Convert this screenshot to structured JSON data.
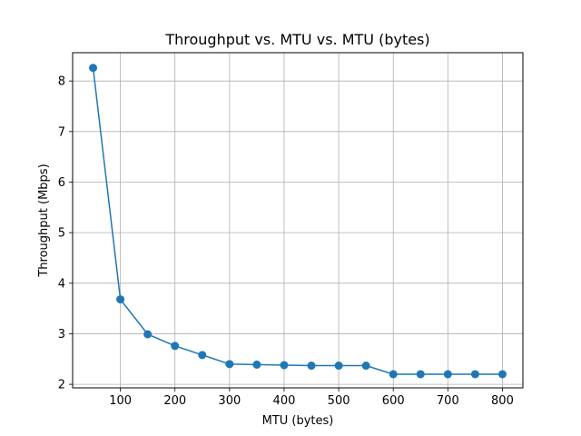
{
  "chart_data": {
    "type": "line",
    "title": "Throughput vs. MTU vs. MTU (bytes)",
    "xlabel": "MTU (bytes)",
    "ylabel": "Throughput (Mbps)",
    "xlim": [
      12.5,
      837.5
    ],
    "ylim": [
      1.93,
      8.56
    ],
    "xticks": [
      100,
      200,
      300,
      400,
      500,
      600,
      700,
      800
    ],
    "yticks": [
      2,
      3,
      4,
      5,
      6,
      7,
      8
    ],
    "grid": true,
    "color": "#1f77b4",
    "marker": "circle",
    "series": [
      {
        "x": [
          50,
          100,
          150,
          200,
          250,
          300,
          350,
          400,
          450,
          500,
          550,
          600,
          650,
          700,
          750,
          800
        ],
        "y": [
          8.26,
          3.68,
          2.99,
          2.76,
          2.58,
          2.4,
          2.39,
          2.38,
          2.37,
          2.37,
          2.37,
          2.2,
          2.2,
          2.2,
          2.2,
          2.2
        ]
      }
    ]
  }
}
